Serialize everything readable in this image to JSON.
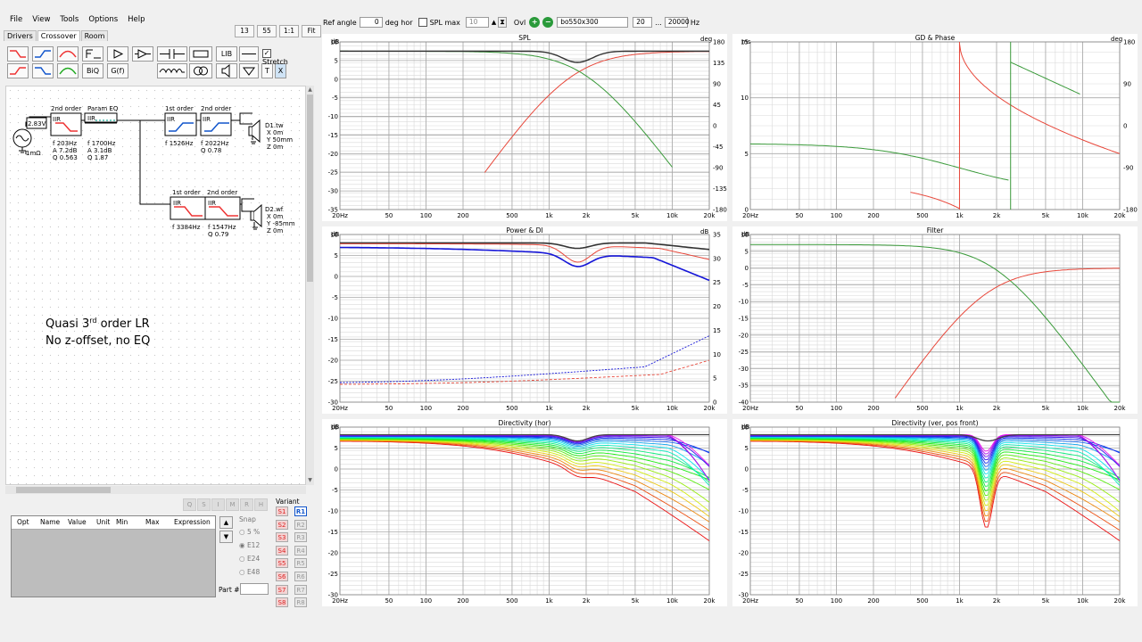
{
  "menu": [
    "File",
    "View",
    "Tools",
    "Options",
    "Help"
  ],
  "tabs": [
    "Drivers",
    "Crossover",
    "Room"
  ],
  "active_tab": "Crossover",
  "zoom_buttons": [
    "13",
    "55",
    "1:1",
    "Fit"
  ],
  "toolbar": {
    "lib": "LIB",
    "biq": "BiQ",
    "gf": "G(f)",
    "stretch": "Stretch",
    "t": "T",
    "x": "X"
  },
  "source": {
    "voltage": "2.83V",
    "impedance": "1mΩ"
  },
  "blocks": {
    "b1": {
      "title": "2nd order",
      "type": "IIR",
      "p1": "f  203Hz",
      "p2": "A  7.2dB",
      "p3": "Q  0.563"
    },
    "b2": {
      "title": "Param EQ",
      "type": "IIR",
      "p1": "f   1700Hz",
      "p2": "A  3.1dB",
      "p3": "Q  1.87"
    },
    "b3": {
      "title": "1st order",
      "type": "IIR",
      "p1": "f  1526Hz"
    },
    "b4": {
      "title": "2nd order",
      "type": "IIR",
      "p1": "f  2022Hz",
      "p2": "Q  0.78"
    },
    "b5": {
      "title": "1st order",
      "type": "IIR",
      "p1": "f  3384Hz"
    },
    "b6": {
      "title": "2nd order",
      "type": "IIR",
      "p1": "f  1547Hz",
      "p2": "Q  0.79"
    }
  },
  "drivers": {
    "d1": {
      "name": "D1.tw",
      "x": "X 0m",
      "y": "Y 50mm",
      "z": "Z 0m"
    },
    "d2": {
      "name": "D2.wf",
      "x": "X 0m",
      "y": "Y -85mm",
      "z": "Z 0m"
    }
  },
  "note": {
    "line1a": "Quasi 3",
    "line1sup": "rd",
    "line1b": " order LR",
    "line2": "No z-offset, no EQ"
  },
  "opt_table": {
    "headers": [
      "Opt",
      "Name",
      "Value",
      "Unit",
      "Min",
      "Max",
      "Expression"
    ]
  },
  "grey_buttons": [
    "Q",
    "S",
    "I",
    "M",
    "R",
    "H"
  ],
  "snap": {
    "label": "Snap",
    "options": [
      "5 %",
      "E12",
      "E24",
      "E48"
    ],
    "selected": "E12"
  },
  "part_label": "Part #",
  "variant": {
    "label": "Variant",
    "s": [
      "S1",
      "S2",
      "S3",
      "S4",
      "S5",
      "S6",
      "S7",
      "S8"
    ],
    "r": [
      "R1",
      "R2",
      "R3",
      "R4",
      "R5",
      "R6",
      "R7",
      "R8"
    ],
    "active": "R1"
  },
  "topbar": {
    "ref_angle_label": "Ref angle",
    "ref_angle": "0",
    "deg_hor": "deg hor",
    "spl_max_label": "SPL max",
    "spl_max": "10",
    "ovl": "Ovl",
    "file": "bo550x300",
    "fmin": "20",
    "sep": "...",
    "fmax": "20000",
    "hz": "Hz"
  },
  "x_ticks": [
    "20Hz",
    "50",
    "100",
    "200",
    "500",
    "1k",
    "2k",
    "5k",
    "10k",
    "20k"
  ],
  "graphs": {
    "spl": {
      "title": "SPL",
      "left_unit": "dB",
      "right_unit": "deg",
      "left_ticks": [
        "10",
        "5",
        "0",
        "-5",
        "-10",
        "-15",
        "-20",
        "-25",
        "-30",
        "-35"
      ],
      "right_ticks": [
        "180",
        "135",
        "90",
        "45",
        "0",
        "-45",
        "-90",
        "-135",
        "-180"
      ]
    },
    "gd": {
      "title": "GD & Phase",
      "left_unit": "ms",
      "right_unit": "deg",
      "left_ticks": [
        "15",
        "10",
        "5",
        "0"
      ],
      "right_ticks": [
        "180",
        "90",
        "0",
        "-90",
        "-180"
      ]
    },
    "power": {
      "title": "Power & DI",
      "left_unit": "dB",
      "right_unit": "dB",
      "left_ticks": [
        "10",
        "5",
        "0",
        "-5",
        "-10",
        "-15",
        "-20",
        "-25",
        "-30"
      ],
      "right_ticks": [
        "35",
        "30",
        "25",
        "20",
        "15",
        "10",
        "5",
        "0"
      ]
    },
    "filter": {
      "title": "Filter",
      "left_unit": "dB",
      "left_ticks": [
        "10",
        "5",
        "0",
        "-5",
        "-10",
        "-15",
        "-20",
        "-25",
        "-30",
        "-35",
        "-40"
      ]
    },
    "dirh": {
      "title": "Directivity (hor)",
      "left_unit": "dB",
      "left_ticks": [
        "10",
        "5",
        "0",
        "-5",
        "-10",
        "-15",
        "-20",
        "-25",
        "-30"
      ]
    },
    "dirv": {
      "title": "Directivity (ver, pos front)",
      "left_unit": "dB",
      "left_ticks": [
        "10",
        "5",
        "0",
        "-5",
        "-10",
        "-15",
        "-20",
        "-25",
        "-30"
      ]
    }
  },
  "colors": {
    "red": "#e8473a",
    "green": "#3a9a3a",
    "black": "#333333",
    "blue": "#1515d8",
    "grid": "#d9d9d9"
  }
}
